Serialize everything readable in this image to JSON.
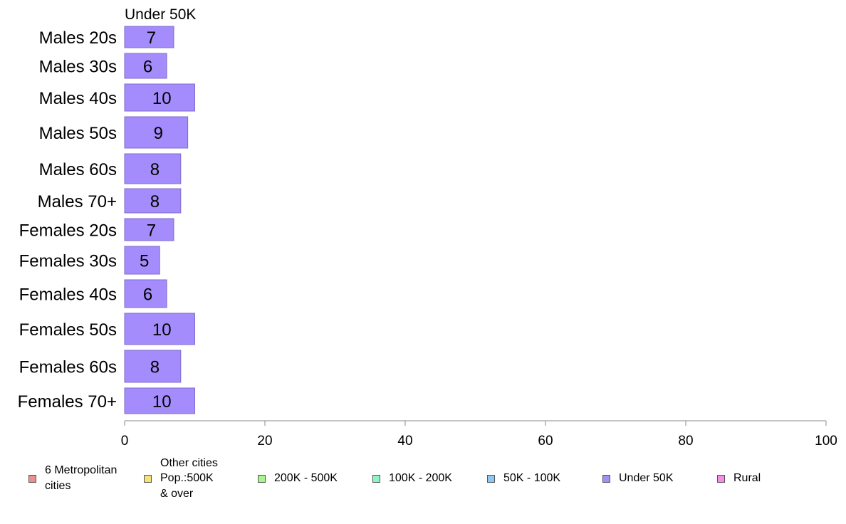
{
  "chart_data": {
    "type": "bar",
    "orientation": "horizontal",
    "panel_title": "Under 50K",
    "categories": [
      "Males 20s",
      "Males 30s",
      "Males 40s",
      "Males 50s",
      "Males 60s",
      "Males 70+",
      "Females 20s",
      "Females 30s",
      "Females 40s",
      "Females 50s",
      "Females 60s",
      "Females 70+"
    ],
    "values": [
      7,
      6,
      10,
      9,
      8,
      8,
      7,
      5,
      6,
      10,
      8,
      10
    ],
    "xlim": [
      0,
      100
    ],
    "xticks": [
      "0",
      "20",
      "40",
      "60",
      "80",
      "100"
    ],
    "bar_color": "#a48cfc",
    "bar_border": "#7f6ccc",
    "grid": false
  },
  "legend": {
    "placement": "bottom",
    "items": [
      {
        "label": "6 Metropolitan\n cities",
        "color": "#f28c8c"
      },
      {
        "label": "Other cities\nPop.:500K\n & over",
        "color": "#f5e27a"
      },
      {
        "label": "200K - 500K",
        "color": "#a8f58c"
      },
      {
        "label": "100K - 200K",
        "color": "#8cf5c4"
      },
      {
        "label": "50K - 100K",
        "color": "#8cc8f5"
      },
      {
        "label": "Under 50K",
        "color": "#a48cfc"
      },
      {
        "label": "Rural",
        "color": "#f58ce8"
      }
    ]
  }
}
